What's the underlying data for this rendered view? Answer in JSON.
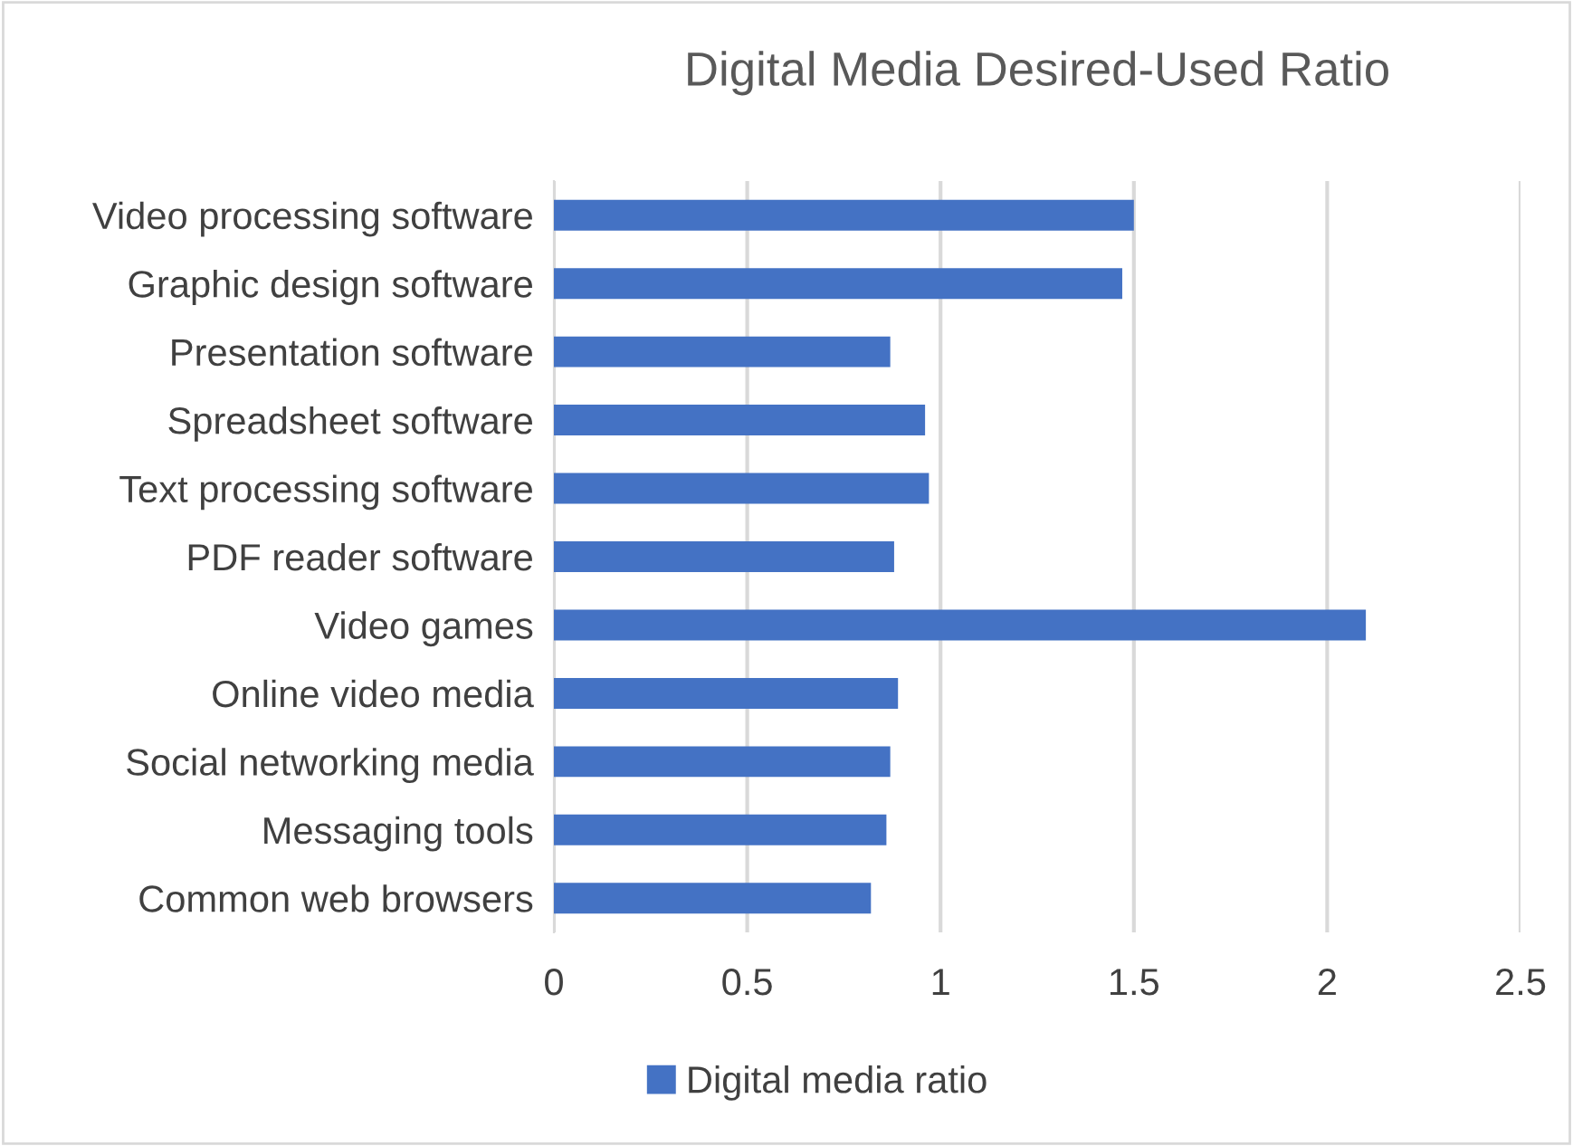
{
  "chart_data": {
    "type": "bar",
    "title": "Digital Media Desired-Used Ratio",
    "orientation": "horizontal",
    "categories": [
      "Video processing software",
      "Graphic design software",
      "Presentation software",
      "Spreadsheet software",
      "Text processing software",
      "PDF reader software",
      "Video games",
      "Online video media",
      "Social networking media",
      "Messaging tools",
      "Common web browsers"
    ],
    "series": [
      {
        "name": "Digital media ratio",
        "color": "#4472c4",
        "values": [
          1.5,
          1.47,
          0.87,
          0.96,
          0.97,
          0.88,
          2.1,
          0.89,
          0.87,
          0.86,
          0.82
        ]
      }
    ],
    "xlim": [
      0,
      2.5
    ],
    "xticks": [
      0,
      0.5,
      1,
      1.5,
      2,
      2.5
    ],
    "grid": "x",
    "legend": "bottom"
  }
}
